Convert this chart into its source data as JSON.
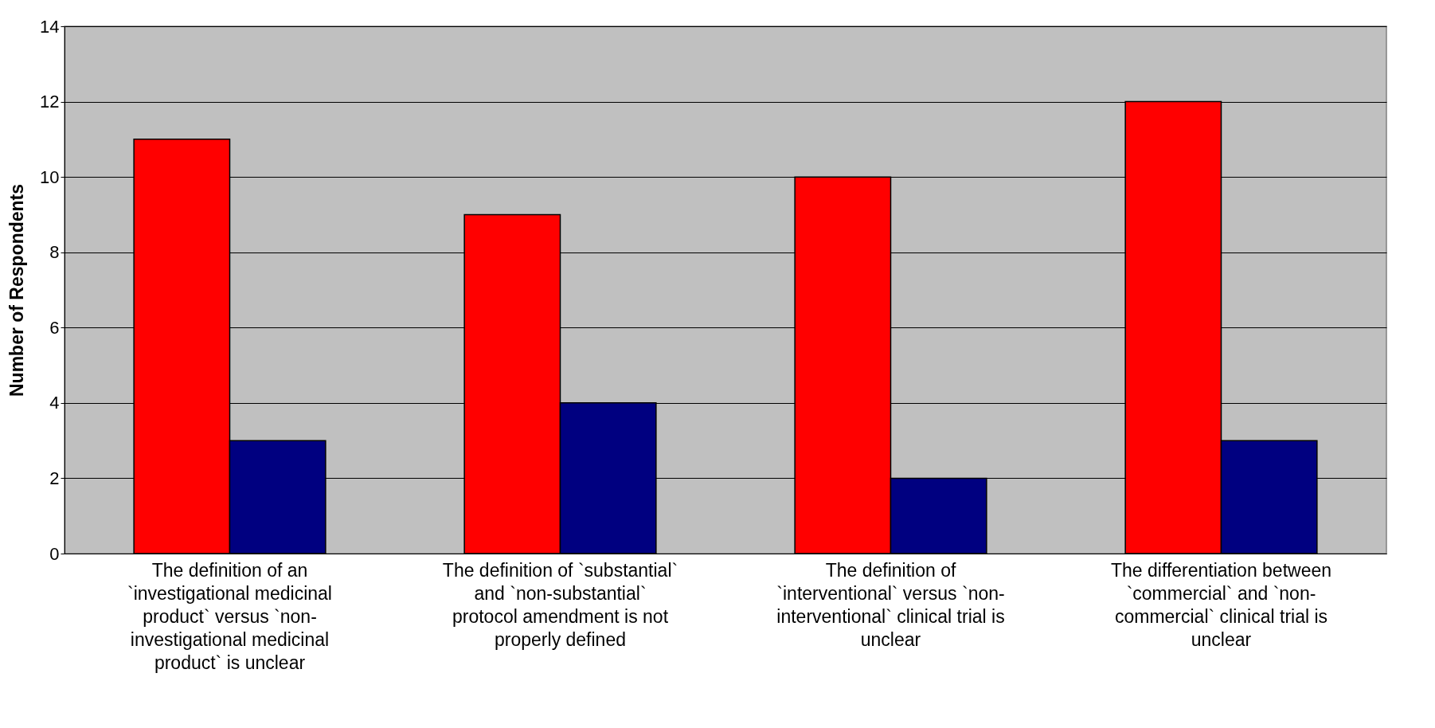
{
  "chart_data": {
    "type": "bar",
    "ylabel": "Number of Respondents",
    "categories": [
      "The definition of an `investigational medicinal product` versus `non-investigational medicinal product` is unclear",
      "The definition of `substantial` and `non-substantial` protocol amendment is not properly defined",
      "The definition of `interventional` versus `non-interventional` clinical trial is unclear",
      "The differentiation between `commercial` and `non-commercial` clinical trial is unclear"
    ],
    "series": [
      {
        "color": "#ff0000",
        "values": [
          11,
          9,
          10,
          12
        ]
      },
      {
        "color": "#000080",
        "values": [
          3,
          4,
          2,
          3
        ]
      }
    ],
    "ylim": [
      0,
      14
    ],
    "yticks": [
      0,
      2,
      4,
      6,
      8,
      10,
      12,
      14
    ],
    "grid": "y",
    "legend": false
  }
}
